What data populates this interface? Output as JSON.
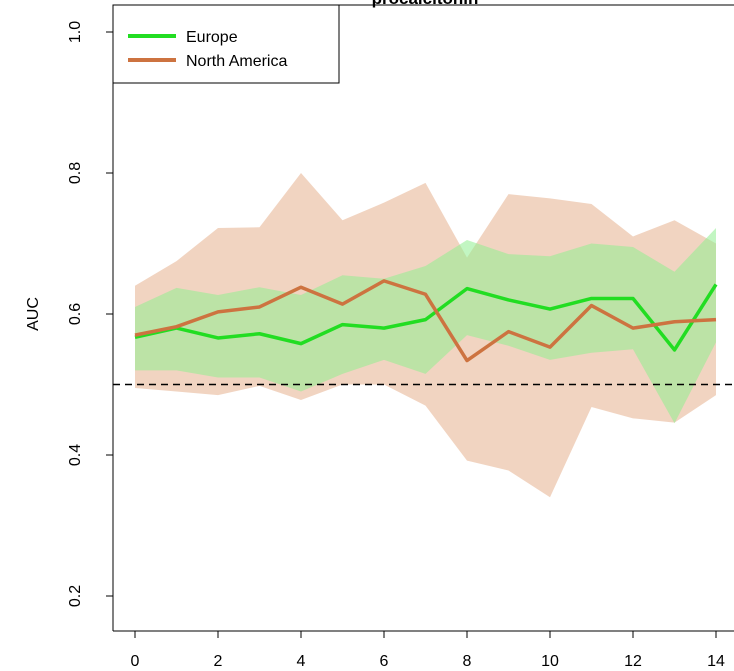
{
  "chart_data": {
    "type": "line",
    "title": "procalcitonin",
    "xlabel": "",
    "ylabel": "AUC",
    "xlim": [
      0,
      14
    ],
    "ylim": [
      0.2,
      1.0
    ],
    "x_ticks": [
      0,
      2,
      4,
      6,
      8,
      10,
      12,
      14
    ],
    "y_ticks": [
      0.2,
      0.4,
      0.6,
      0.8,
      1.0
    ],
    "y_tick_labels": [
      "0.2",
      "0.4",
      "0.6",
      "0.8",
      "1.0"
    ],
    "x_tick_labels": [
      "0",
      "2",
      "4",
      "6",
      "8",
      "10",
      "12",
      "14"
    ],
    "reference_line": {
      "y": 0.5,
      "style": "dashed"
    },
    "legend": {
      "position": "top-left",
      "entries": [
        "Europe",
        "North America"
      ]
    },
    "x": [
      0,
      1,
      2,
      3,
      4,
      5,
      6,
      7,
      8,
      9,
      10,
      11,
      12,
      13,
      14
    ],
    "series": [
      {
        "name": "Europe",
        "color": "#22dd22",
        "band_color": "#90ee90",
        "values": [
          0.567,
          0.58,
          0.566,
          0.572,
          0.558,
          0.585,
          0.58,
          0.592,
          0.636,
          0.62,
          0.607,
          0.622,
          0.622,
          0.549,
          0.642
        ],
        "lower": [
          0.52,
          0.52,
          0.51,
          0.51,
          0.49,
          0.515,
          0.535,
          0.515,
          0.57,
          0.555,
          0.535,
          0.545,
          0.55,
          0.445,
          0.56
        ],
        "upper": [
          0.61,
          0.637,
          0.627,
          0.638,
          0.627,
          0.655,
          0.65,
          0.668,
          0.705,
          0.685,
          0.682,
          0.7,
          0.695,
          0.66,
          0.722
        ]
      },
      {
        "name": "North America",
        "color": "#cd7340",
        "band_color": "#e8b898",
        "values": [
          0.57,
          0.582,
          0.603,
          0.61,
          0.638,
          0.614,
          0.647,
          0.628,
          0.534,
          0.575,
          0.553,
          0.612,
          0.58,
          0.589,
          0.592
        ],
        "lower": [
          0.495,
          0.49,
          0.485,
          0.498,
          0.478,
          0.5,
          0.5,
          0.47,
          0.392,
          0.378,
          0.34,
          0.468,
          0.452,
          0.446,
          0.485
        ],
        "upper": [
          0.64,
          0.675,
          0.722,
          0.723,
          0.8,
          0.733,
          0.758,
          0.786,
          0.68,
          0.77,
          0.764,
          0.756,
          0.71,
          0.733,
          0.7
        ]
      }
    ]
  }
}
